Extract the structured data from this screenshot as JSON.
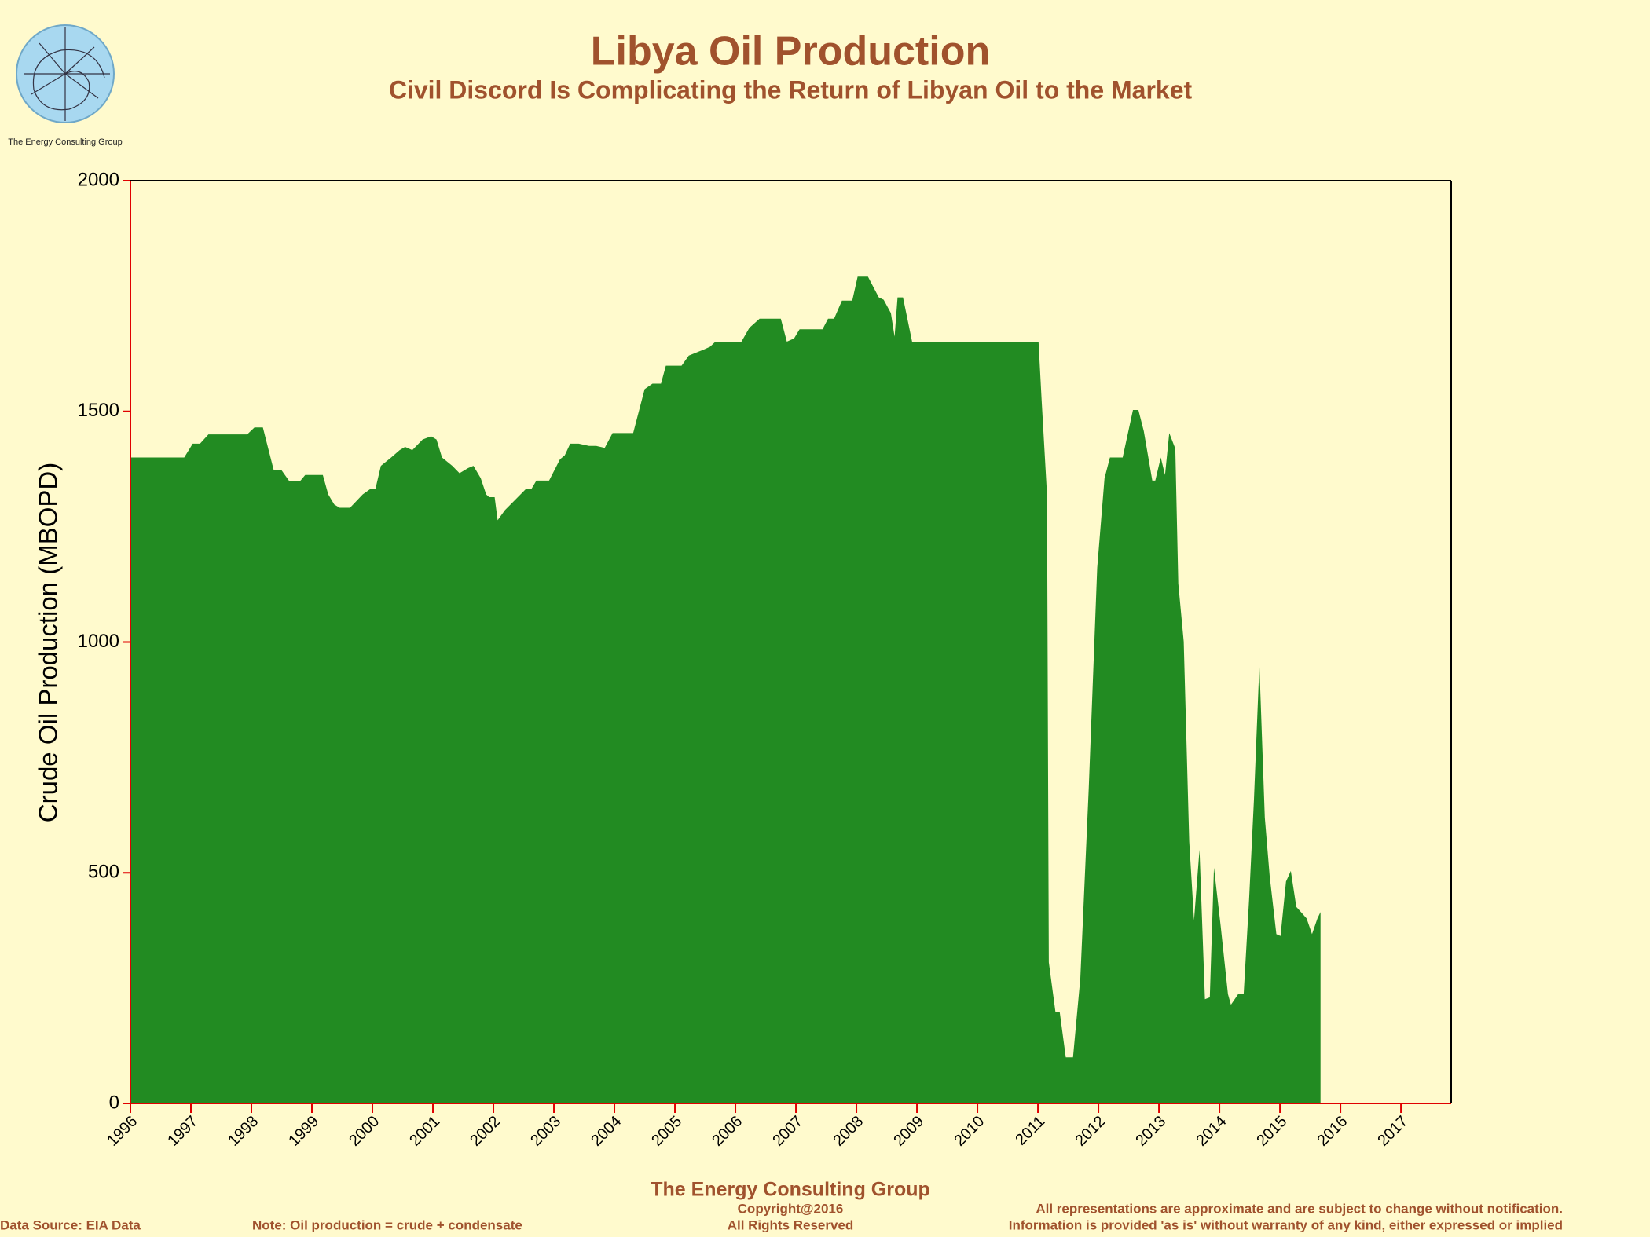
{
  "chart_data": {
    "type": "area",
    "title": "Libya Oil Production",
    "subtitle": "Civil Discord Is Complicating the Return of Libyan Oil to the Market",
    "y_label": "Crude Oil Production (MBOPD)",
    "logo_text": "The Energy Consulting Group",
    "footer": {
      "company": "The Energy Consulting Group",
      "copyright": "Copyright@2016",
      "rights": "All Rights Reserved",
      "source": "Data Source: EIA Data",
      "note": "Note: Oil production = crude + condensate",
      "disclaimer1": "All representations are approximate and are subject to change without notification.",
      "disclaimer2": "Information is provided 'as is' without warranty of any kind, either expressed or implied"
    },
    "color": "#228b22",
    "xlim": [
      1996,
      2017.83
    ],
    "ylim": [
      0,
      2000
    ],
    "xticks": [
      1996,
      1997,
      1998,
      1999,
      2000,
      2001,
      2002,
      2003,
      2004,
      2005,
      2006,
      2007,
      2008,
      2009,
      2010,
      2011,
      2012,
      2013,
      2014,
      2015,
      2016,
      2017
    ],
    "yticks": [
      0,
      500,
      1000,
      1500,
      2000
    ],
    "x": [
      1996.0,
      1996.89,
      1997.03,
      1997.15,
      1997.29,
      1997.93,
      1998.05,
      1998.19,
      1998.37,
      1998.5,
      1998.63,
      1998.8,
      1998.89,
      1999.18,
      1999.27,
      1999.37,
      1999.46,
      1999.63,
      1999.84,
      1999.97,
      2000.05,
      2000.14,
      2000.31,
      2000.45,
      2000.54,
      2000.66,
      2000.83,
      2000.97,
      2001.06,
      2001.15,
      2001.32,
      2001.44,
      2001.58,
      2001.67,
      2001.79,
      2001.88,
      2001.93,
      2002.02,
      2002.07,
      2002.19,
      2002.54,
      2002.63,
      2002.71,
      2002.92,
      2003.1,
      2003.18,
      2003.27,
      2003.41,
      2003.58,
      2003.7,
      2003.84,
      2003.97,
      2004.31,
      2004.5,
      2004.63,
      2004.77,
      2004.85,
      2005.11,
      2005.23,
      2005.46,
      2005.58,
      2005.67,
      2006.1,
      2006.23,
      2006.4,
      2006.75,
      2006.85,
      2006.97,
      2007.06,
      2007.44,
      2007.53,
      2007.63,
      2007.76,
      2007.93,
      2008.02,
      2008.19,
      2008.37,
      2008.45,
      2008.57,
      2008.63,
      2008.68,
      2008.77,
      2008.92,
      2011.01,
      2011.06,
      2011.15,
      2011.18,
      2011.29,
      2011.36,
      2011.46,
      2011.58,
      2011.7,
      2011.84,
      2011.98,
      2012.1,
      2012.19,
      2012.4,
      2012.57,
      2012.66,
      2012.75,
      2012.89,
      2012.94,
      2013.03,
      2013.1,
      2013.17,
      2013.27,
      2013.32,
      2013.41,
      2013.5,
      2013.58,
      2013.67,
      2013.76,
      2013.84,
      2013.91,
      2014.02,
      2014.14,
      2014.19,
      2014.31,
      2014.4,
      2014.49,
      2014.57,
      2014.66,
      2014.75,
      2014.83,
      2014.94,
      2015.01,
      2015.1,
      2015.18,
      2015.27,
      2015.36,
      2015.44,
      2015.53,
      2015.62,
      2015.67
    ],
    "values": [
      1400,
      1400,
      1430,
      1430,
      1450,
      1450,
      1465,
      1465,
      1372,
      1372,
      1348,
      1348,
      1362,
      1362,
      1320,
      1298,
      1291,
      1291,
      1320,
      1332,
      1332,
      1382,
      1400,
      1416,
      1423,
      1416,
      1439,
      1446,
      1439,
      1400,
      1382,
      1366,
      1377,
      1382,
      1355,
      1320,
      1314,
      1314,
      1264,
      1286,
      1332,
      1332,
      1350,
      1350,
      1396,
      1405,
      1430,
      1430,
      1425,
      1425,
      1421,
      1453,
      1453,
      1548,
      1560,
      1560,
      1599,
      1599,
      1621,
      1633,
      1640,
      1651,
      1651,
      1681,
      1701,
      1701,
      1651,
      1658,
      1678,
      1678,
      1701,
      1701,
      1740,
      1740,
      1792,
      1792,
      1747,
      1742,
      1713,
      1662,
      1747,
      1747,
      1651,
      1651,
      1526,
      1320,
      306,
      198,
      198,
      100,
      100,
      271,
      682,
      1161,
      1355,
      1400,
      1400,
      1503,
      1503,
      1457,
      1350,
      1350,
      1400,
      1362,
      1453,
      1419,
      1127,
      1001,
      568,
      397,
      550,
      226,
      230,
      511,
      385,
      237,
      214,
      237,
      237,
      442,
      659,
      951,
      620,
      493,
      367,
      363,
      481,
      504,
      426,
      413,
      401,
      367,
      401,
      415
    ]
  }
}
